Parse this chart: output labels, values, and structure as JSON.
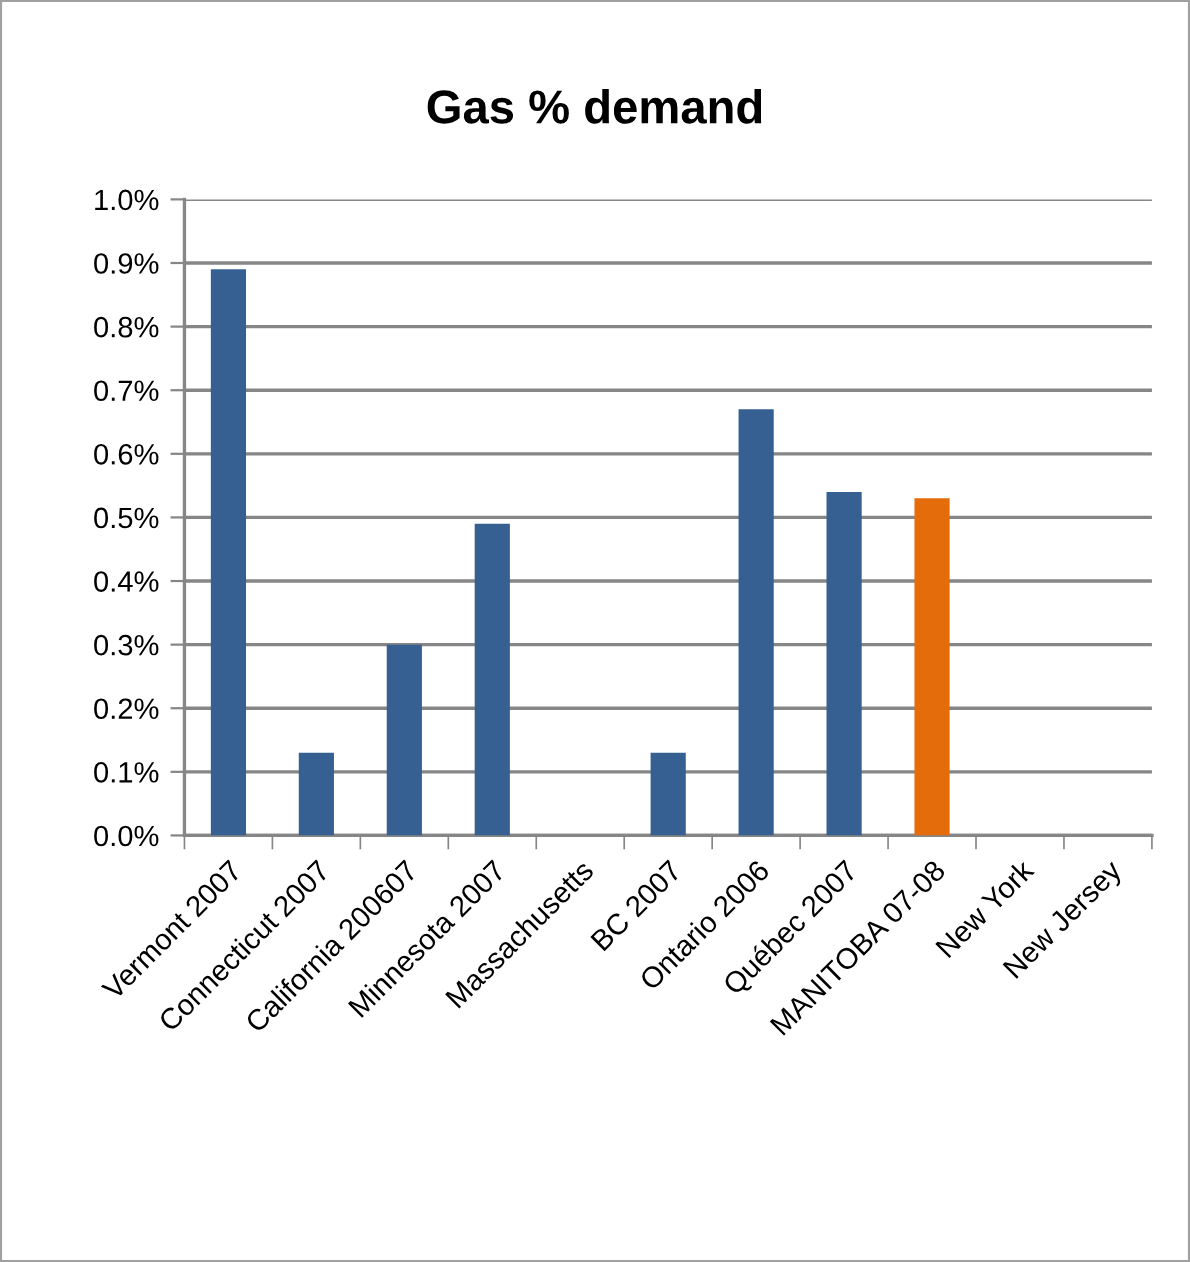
{
  "chart_data": {
    "type": "bar",
    "title": "Gas % demand",
    "categories": [
      "Vermont 2007",
      "Connecticut 2007",
      "California 200607",
      "Minnesota 2007",
      "Massachusetts",
      "BC 2007",
      "Ontario 2006",
      "Québec 2007",
      "MANITOBA 07-08",
      "New York",
      "New Jersey"
    ],
    "values": [
      0.89,
      0.13,
      0.3,
      0.49,
      null,
      0.13,
      0.67,
      0.54,
      0.53,
      null,
      null
    ],
    "colors": [
      "#376092",
      "#376092",
      "#376092",
      "#376092",
      "#376092",
      "#376092",
      "#376092",
      "#376092",
      "#e46c0a",
      "#376092",
      "#376092"
    ],
    "ylim": [
      0,
      1.0
    ],
    "yticks": [
      {
        "value": 0,
        "label": "0.0%"
      },
      {
        "value": 0.1,
        "label": "0.1%"
      },
      {
        "value": 0.2,
        "label": "0.2%"
      },
      {
        "value": 0.3,
        "label": "0.3%"
      },
      {
        "value": 0.4,
        "label": "0.4%"
      },
      {
        "value": 0.5,
        "label": "0.5%"
      },
      {
        "value": 0.6,
        "label": "0.6%"
      },
      {
        "value": 0.7,
        "label": "0.7%"
      },
      {
        "value": 0.8,
        "label": "0.8%"
      },
      {
        "value": 0.9,
        "label": "0.9%"
      },
      {
        "value": 1.0,
        "label": "1.0%"
      }
    ],
    "grid": "y"
  }
}
